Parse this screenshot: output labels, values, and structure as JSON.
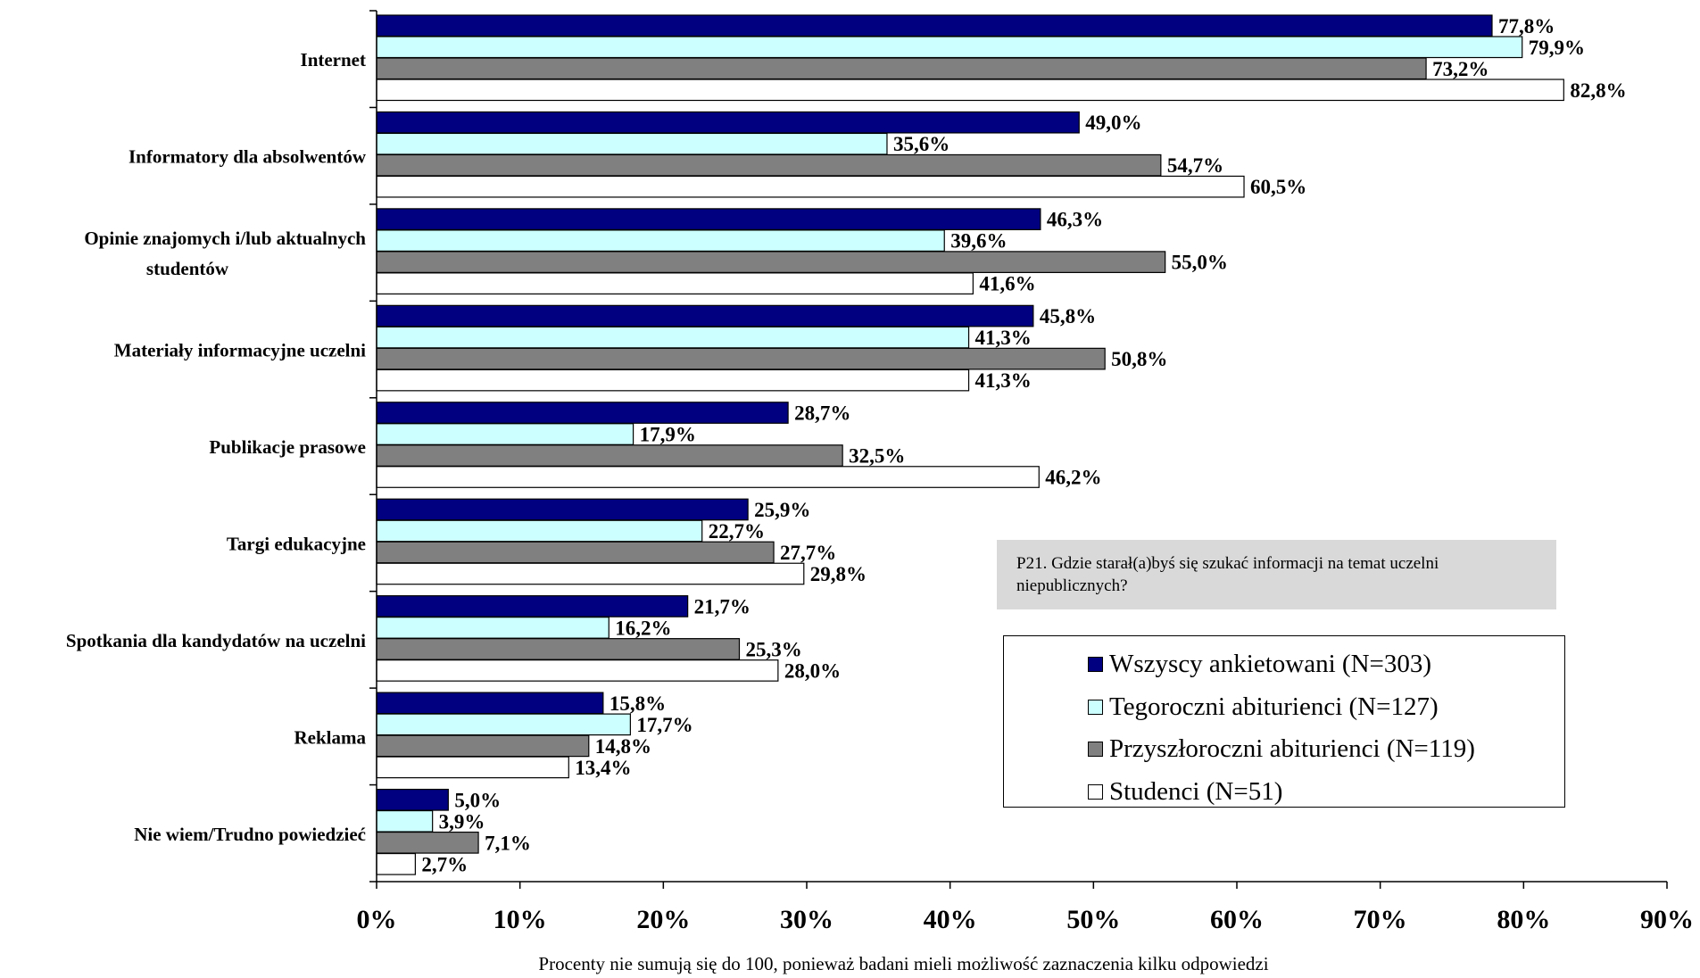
{
  "chart_data": {
    "type": "bar",
    "orientation": "horizontal",
    "categories": [
      "Internet",
      "Informatory dla absolwentów",
      "Opinie znajomych i/lub aktualnych studentów",
      "Materiały informacyjne uczelni",
      "Publikacje prasowe",
      "Targi edukacyjne",
      "Spotkania dla kandydatów na uczelni",
      "Reklama",
      "Nie wiem/Trudno powiedzieć"
    ],
    "category_lines": [
      [
        "Internet"
      ],
      [
        "Informatory dla absolwentów"
      ],
      [
        "Opinie znajomych i/lub aktualnych",
        "studentów"
      ],
      [
        "Materiały informacyjne uczelni"
      ],
      [
        "Publikacje prasowe"
      ],
      [
        "Targi edukacyjne"
      ],
      [
        "Spotkania dla kandydatów na uczelni"
      ],
      [
        "Reklama"
      ],
      [
        "Nie wiem/Trudno powiedzieć"
      ]
    ],
    "series": [
      {
        "name": "Wszyscy ankietowani (N=303)",
        "color": "#000080",
        "values": [
          77.8,
          49.0,
          46.3,
          45.8,
          28.7,
          25.9,
          21.7,
          15.8,
          5.0
        ],
        "labels": [
          "77,8%",
          "49,0%",
          "46,3%",
          "45,8%",
          "28,7%",
          "25,9%",
          "21,7%",
          "15,8%",
          "5,0%"
        ]
      },
      {
        "name": "Tegoroczni abiturienci (N=127)",
        "color": "#ccffff",
        "values": [
          79.9,
          35.6,
          39.6,
          41.3,
          17.9,
          22.7,
          16.2,
          17.7,
          3.9
        ],
        "labels": [
          "79,9%",
          "35,6%",
          "39,6%",
          "41,3%",
          "17,9%",
          "22,7%",
          "16,2%",
          "17,7%",
          "3,9%"
        ]
      },
      {
        "name": "Przyszłoroczni abiturienci (N=119)",
        "color": "#808080",
        "values": [
          73.2,
          54.7,
          55.0,
          50.8,
          32.5,
          27.7,
          25.3,
          14.8,
          7.1
        ],
        "labels": [
          "73,2%",
          "54,7%",
          "55,0%",
          "50,8%",
          "32,5%",
          "27,7%",
          "25,3%",
          "14,8%",
          "7,1%"
        ]
      },
      {
        "name": "Studenci (N=51)",
        "color": "#ffffff",
        "values": [
          82.8,
          60.5,
          41.6,
          41.3,
          46.2,
          29.8,
          28.0,
          13.4,
          2.7
        ],
        "labels": [
          "82,8%",
          "60,5%",
          "41,6%",
          "41,3%",
          "46,2%",
          "29,8%",
          "28,0%",
          "13,4%",
          "2,7%"
        ]
      }
    ],
    "xlim": [
      0,
      90
    ],
    "xticks": [
      0,
      10,
      20,
      30,
      40,
      50,
      60,
      70,
      80,
      90
    ],
    "xtick_labels": [
      "0%",
      "10%",
      "20%",
      "30%",
      "40%",
      "50%",
      "60%",
      "70%",
      "80%",
      "90%"
    ],
    "grid": false,
    "legend_position": "lower-right"
  },
  "question_text": "P21. Gdzie starał(a)byś się szukać informacji na temat uczelni niepublicznych?",
  "footnote": "Procenty nie sumują się do 100, ponieważ badani mieli możliwość zaznaczenia kilku odpowiedzi"
}
